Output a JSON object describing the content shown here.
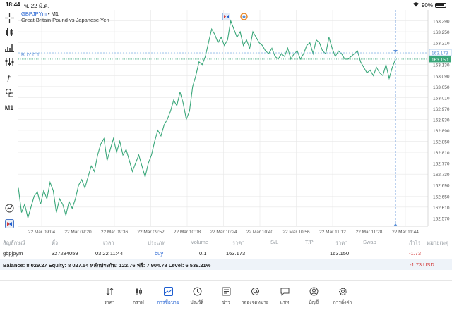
{
  "statusbar": {
    "time": "18:44",
    "date": "พ. 22 มี.ค.",
    "battery": "90%",
    "battery_level": 0.9
  },
  "toolbar": [
    {
      "name": "crosshair-icon"
    },
    {
      "name": "candle-type-icon"
    },
    {
      "name": "indicators-icon"
    },
    {
      "name": "objects-icon"
    },
    {
      "name": "function-icon"
    },
    {
      "name": "shapes-icon"
    },
    {
      "name": "timeframe",
      "label": "M1"
    }
  ],
  "toolbar_bottom": [
    {
      "name": "zoom-out-icon"
    },
    {
      "name": "trading-signal-icon"
    }
  ],
  "chart": {
    "symbol": "GBPJPYm",
    "timeframe_text": " • M1",
    "description": "Great Britain Pound vs Japanese Yen",
    "buy_label": "BUY 0.1",
    "colors": {
      "line": "#3aa77a",
      "buy": "#7fb3e8",
      "bid": "#3aa77a",
      "cursor": "#5a8fd8",
      "grid": "#e7e7e7"
    }
  },
  "chart_data": {
    "type": "line",
    "x_labels": [
      "22 Mar 09:04",
      "22 Mar 09:20",
      "22 Mar 09:36",
      "22 Mar 09:52",
      "22 Mar 10:08",
      "22 Mar 10:24",
      "22 Mar 10:40",
      "22 Mar 10:56",
      "22 Mar 11:12",
      "22 Mar 11:28",
      "22 Mar 11:44"
    ],
    "y_ticks": [
      163.29,
      163.25,
      163.21,
      163.17,
      163.13,
      163.09,
      163.05,
      163.01,
      162.97,
      162.93,
      162.89,
      162.85,
      162.81,
      162.77,
      162.73,
      162.69,
      162.65,
      162.61,
      162.57
    ],
    "ylim": [
      162.54,
      163.33
    ],
    "buy_price": "163.173",
    "bid_price": "163.150",
    "buy_value": 163.173,
    "bid_value": 163.15,
    "series": [
      {
        "values": [
          162.68,
          162.59,
          162.62,
          162.57,
          162.61,
          162.65,
          162.665,
          162.62,
          162.67,
          162.64,
          162.7,
          162.67,
          162.59,
          162.64,
          162.62,
          162.58,
          162.63,
          162.605,
          162.64,
          162.69,
          162.71,
          162.68,
          162.72,
          162.76,
          162.74,
          162.8,
          162.84,
          162.86,
          162.78,
          162.82,
          162.86,
          162.81,
          162.85,
          162.8,
          162.82,
          162.78,
          162.74,
          162.77,
          162.8,
          162.76,
          162.72,
          162.77,
          162.8,
          162.85,
          162.89,
          162.87,
          162.91,
          162.93,
          162.96,
          163.0,
          162.98,
          163.03,
          162.99,
          162.93,
          162.96,
          163.05,
          163.09,
          163.14,
          163.13,
          163.16,
          163.21,
          163.26,
          163.24,
          163.21,
          163.23,
          163.2,
          163.22,
          163.29,
          163.26,
          163.23,
          163.25,
          163.2,
          163.22,
          163.19,
          163.25,
          163.23,
          163.21,
          163.2,
          163.18,
          163.17,
          163.19,
          163.16,
          163.15,
          163.17,
          163.16,
          163.19,
          163.15,
          163.17,
          163.18,
          163.15,
          163.17,
          163.2,
          163.21,
          163.17,
          163.22,
          163.21,
          163.18,
          163.17,
          163.23,
          163.19,
          163.16,
          163.18,
          163.17,
          163.15,
          163.15,
          163.16,
          163.17,
          163.18,
          163.14,
          163.12,
          163.1,
          163.11,
          163.09,
          163.12,
          163.1,
          163.09,
          163.13,
          163.08,
          163.12,
          163.15
        ]
      }
    ]
  },
  "trades": {
    "headers": [
      "สัญลักษณ์",
      "ตั๋ว",
      "เวลา",
      "ประเภท",
      "Volume",
      "ราคา",
      "S/L",
      "T/P",
      "ราคา",
      "Swap",
      "กำไร",
      "หมายเหตุ"
    ],
    "row": {
      "symbol": "gbpjpym",
      "ticket": "327284059",
      "time": "03.22 11:44",
      "type": "buy",
      "volume": "0.1",
      "open_price": "163.173",
      "price": "163.150",
      "profit": "-1.73"
    }
  },
  "balance": {
    "text": "Balance: 8 029.27 Equity: 8 027.54 หลักประกัน: 122.76 ฟรี: 7 904.78 Level: 6 539.21%",
    "profit": "-1.73",
    "currency": "USD"
  },
  "nav": [
    {
      "label": "ราคา",
      "icon": "quotes-icon"
    },
    {
      "label": "กราฟ",
      "icon": "chart-icon"
    },
    {
      "label": "การซื้อขาย",
      "icon": "trade-icon",
      "active": true
    },
    {
      "label": "ประวัติ",
      "icon": "history-icon"
    },
    {
      "label": "ข่าว",
      "icon": "news-icon"
    },
    {
      "label": "กล่องจดหมาย",
      "icon": "mailbox-icon"
    },
    {
      "label": "แชท",
      "icon": "chat-icon"
    },
    {
      "label": "บัญชี",
      "icon": "account-icon"
    },
    {
      "label": "การตั้งค่า",
      "icon": "settings-icon"
    }
  ]
}
